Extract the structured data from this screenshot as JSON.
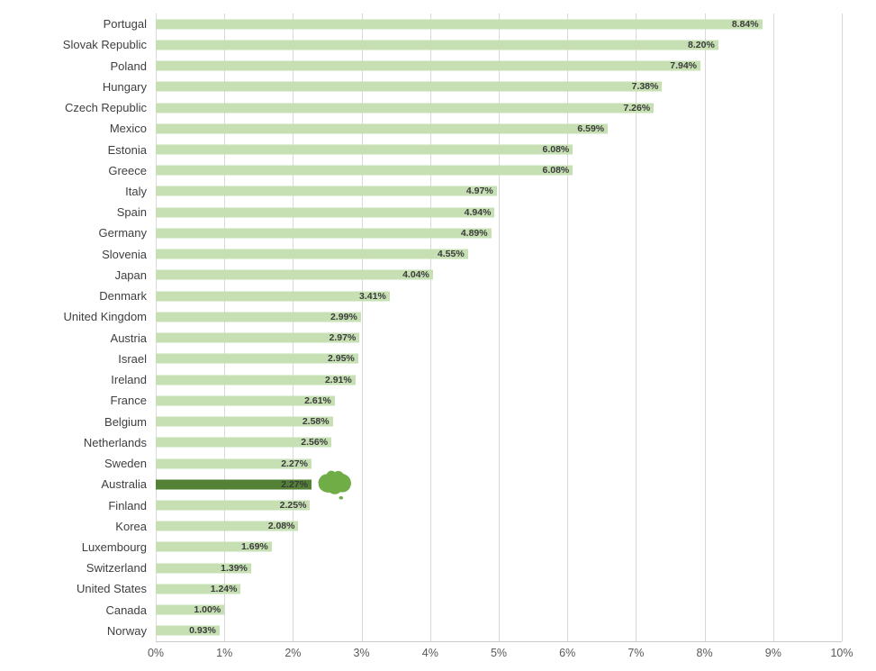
{
  "chart_data": {
    "type": "bar",
    "orientation": "horizontal",
    "title": "",
    "xlabel": "",
    "ylabel": "",
    "xlim": [
      0,
      10
    ],
    "grid": true,
    "legend": false,
    "categories": [
      "Portugal",
      "Slovak Republic",
      "Poland",
      "Hungary",
      "Czech Republic",
      "Mexico",
      "Estonia",
      "Greece",
      "Italy",
      "Spain",
      "Germany",
      "Slovenia",
      "Japan",
      "Denmark",
      "United Kingdom",
      "Austria",
      "Israel",
      "Ireland",
      "France",
      "Belgium",
      "Netherlands",
      "Sweden",
      "Australia",
      "Finland",
      "Korea",
      "Luxembourg",
      "Switzerland",
      "United States",
      "Canada",
      "Norway"
    ],
    "values": [
      8.84,
      8.2,
      7.94,
      7.38,
      7.26,
      6.59,
      6.08,
      6.08,
      4.97,
      4.94,
      4.89,
      4.55,
      4.04,
      3.41,
      2.99,
      2.97,
      2.95,
      2.91,
      2.61,
      2.58,
      2.56,
      2.27,
      2.27,
      2.25,
      2.08,
      1.69,
      1.39,
      1.24,
      1.0,
      0.93
    ],
    "value_labels": [
      "8.84%",
      "8.20%",
      "7.94%",
      "7.38%",
      "7.26%",
      "6.59%",
      "6.08%",
      "6.08%",
      "4.97%",
      "4.94%",
      "4.89%",
      "4.55%",
      "4.04%",
      "3.41%",
      "2.99%",
      "2.97%",
      "2.95%",
      "2.91%",
      "2.61%",
      "2.58%",
      "2.56%",
      "2.27%",
      "2.27%",
      "2.25%",
      "2.08%",
      "1.69%",
      "1.39%",
      "1.24%",
      "1.00%",
      "0.93%"
    ],
    "x_ticks": [
      "0%",
      "1%",
      "2%",
      "3%",
      "4%",
      "5%",
      "6%",
      "7%",
      "8%",
      "9%",
      "10%"
    ],
    "highlight_category": "Australia",
    "annotations": [
      {
        "icon": "australia-map-icon",
        "target": "Australia"
      }
    ],
    "colors": {
      "bar": "#c6e0b4",
      "highlight_bar": "#538135",
      "map_icon": "#70ad47",
      "gridline": "#d9d9d9",
      "axis_line": "#c9c9c9",
      "category_label": "#3f3f3f",
      "value_label": "#3b3b3b",
      "tick_label": "#595959"
    }
  }
}
